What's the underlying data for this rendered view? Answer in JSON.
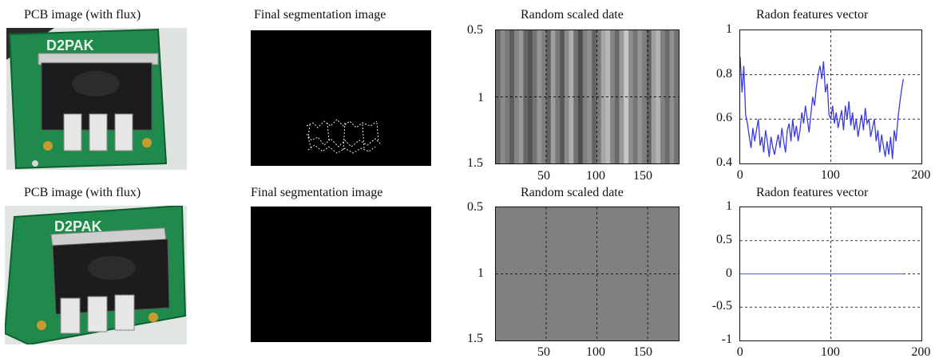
{
  "panels": {
    "row1": {
      "pcb_title": "PCB image (with flux)",
      "pcb_label": "D2PAK",
      "seg_title": "Final segmentation image",
      "scaled_title": "Random scaled date",
      "radon_title": "Radon features vector"
    },
    "row2": {
      "pcb_title": "PCB image (with flux)",
      "pcb_label": "D2PAK",
      "seg_title": "Final segmentation image",
      "scaled_title": "Random scaled date",
      "radon_title": "Radon features vector"
    }
  },
  "scaled_axes": {
    "y_ticks": [
      "0.5",
      "1",
      "1.5"
    ],
    "x_ticks": [
      "50",
      "100",
      "150"
    ]
  },
  "chart_data": [
    {
      "type": "heatmap",
      "title": "Random scaled date",
      "x": [
        1,
        180
      ],
      "ylim": [
        0.5,
        1.5
      ],
      "grid": true,
      "columns_gray": [
        0.42,
        0.55,
        0.48,
        0.36,
        0.52,
        0.6,
        0.4,
        0.33,
        0.45,
        0.58,
        0.5,
        0.38,
        0.62,
        0.47,
        0.35,
        0.55,
        0.68,
        0.44,
        0.3,
        0.5,
        0.57,
        0.39,
        0.48,
        0.65,
        0.72,
        0.52,
        0.41,
        0.6,
        0.78,
        0.55,
        0.46,
        0.58,
        0.49,
        0.38,
        0.62,
        0.7,
        0.5,
        0.42,
        0.56,
        0.45
      ]
    },
    {
      "type": "line",
      "title": "Radon features vector",
      "xlim": [
        0,
        200
      ],
      "ylim": [
        0.4,
        1
      ],
      "x_ticks": [
        "0",
        "100",
        "200"
      ],
      "y_ticks": [
        "0.4",
        "0.6",
        "0.8",
        "1"
      ],
      "grid": true,
      "color": "#3a3ae0",
      "series": [
        {
          "x": [
            0,
            2,
            4,
            6,
            8,
            10,
            12,
            14,
            16,
            18,
            20,
            22,
            24,
            26,
            28,
            30,
            32,
            34,
            36,
            38,
            40,
            42,
            44,
            46,
            48,
            50,
            52,
            54,
            56,
            58,
            60,
            62,
            64,
            66,
            68,
            70,
            72,
            74,
            76,
            78,
            80,
            82,
            84,
            86,
            88,
            90,
            92,
            94,
            96,
            98,
            100,
            102,
            104,
            106,
            108,
            110,
            112,
            114,
            116,
            118,
            120,
            122,
            124,
            126,
            128,
            130,
            132,
            134,
            136,
            138,
            140,
            142,
            144,
            146,
            148,
            150,
            152,
            154,
            156,
            158,
            160,
            162,
            164,
            166,
            168,
            170,
            172,
            174,
            176,
            178,
            180
          ],
          "y": [
            0.88,
            0.72,
            0.84,
            0.62,
            0.58,
            0.52,
            0.47,
            0.56,
            0.5,
            0.55,
            0.6,
            0.48,
            0.52,
            0.45,
            0.55,
            0.5,
            0.43,
            0.52,
            0.47,
            0.44,
            0.49,
            0.53,
            0.47,
            0.56,
            0.5,
            0.45,
            0.55,
            0.58,
            0.5,
            0.6,
            0.52,
            0.57,
            0.5,
            0.55,
            0.63,
            0.58,
            0.66,
            0.6,
            0.54,
            0.62,
            0.7,
            0.66,
            0.74,
            0.8,
            0.84,
            0.78,
            0.86,
            0.72,
            0.76,
            0.62,
            0.6,
            0.66,
            0.58,
            0.63,
            0.56,
            0.6,
            0.64,
            0.55,
            0.66,
            0.6,
            0.68,
            0.57,
            0.63,
            0.55,
            0.6,
            0.52,
            0.57,
            0.62,
            0.55,
            0.65,
            0.58,
            0.6,
            0.52,
            0.56,
            0.6,
            0.5,
            0.55,
            0.45,
            0.53,
            0.48,
            0.43,
            0.5,
            0.44,
            0.52,
            0.42,
            0.55,
            0.5,
            0.6,
            0.67,
            0.73,
            0.78
          ]
        }
      ]
    },
    {
      "type": "heatmap",
      "title": "Random scaled date",
      "x": [
        1,
        180
      ],
      "ylim": [
        0.5,
        1.5
      ],
      "grid": true,
      "uniform_gray": 0.5
    },
    {
      "type": "line",
      "title": "Radon features vector",
      "xlim": [
        0,
        200
      ],
      "ylim": [
        -1,
        1
      ],
      "x_ticks": [
        "0",
        "100",
        "200"
      ],
      "y_ticks": [
        "1",
        "0.5",
        "0",
        "-0.5",
        "-1"
      ],
      "grid": true,
      "color": "#6b6bf0",
      "series": [
        {
          "x": [
            0,
            180
          ],
          "y": [
            0,
            0
          ]
        }
      ]
    }
  ]
}
